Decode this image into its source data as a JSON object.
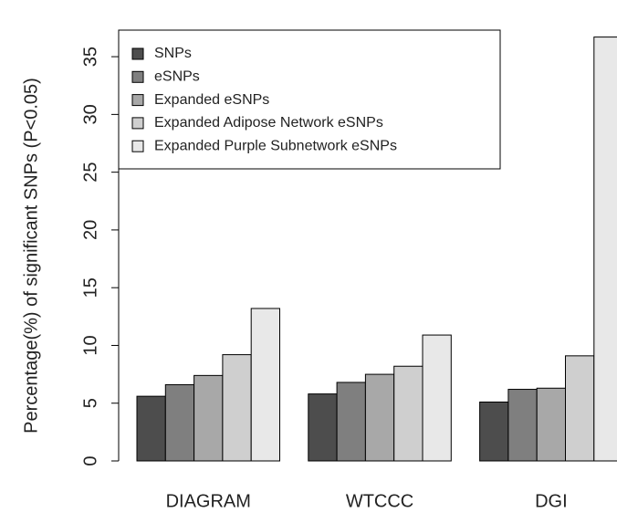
{
  "chart_data": {
    "type": "bar",
    "ylabel": "Percentage(%) of significant SNPs (P<0.05)",
    "categories": [
      "DIAGRAM",
      "WTCCC",
      "DGI"
    ],
    "series": [
      {
        "name": "SNPs",
        "color": "#4d4d4d",
        "values": [
          5.6,
          5.8,
          5.1
        ]
      },
      {
        "name": "eSNPs",
        "color": "#7f7f7f",
        "values": [
          6.6,
          6.8,
          6.2
        ]
      },
      {
        "name": "Expanded eSNPs",
        "color": "#a8a8a8",
        "values": [
          7.4,
          7.5,
          6.3
        ]
      },
      {
        "name": "Expanded Adipose Network eSNPs",
        "color": "#cfcfcf",
        "values": [
          9.2,
          8.2,
          9.1
        ]
      },
      {
        "name": "Expanded Purple Subnetwork eSNPs",
        "color": "#e8e8e8",
        "values": [
          13.2,
          10.9,
          36.7
        ]
      }
    ],
    "ylim": [
      0,
      37.3
    ],
    "yticks": [
      0,
      5,
      10,
      15,
      20,
      25,
      30,
      35
    ],
    "legend": "top-left"
  }
}
